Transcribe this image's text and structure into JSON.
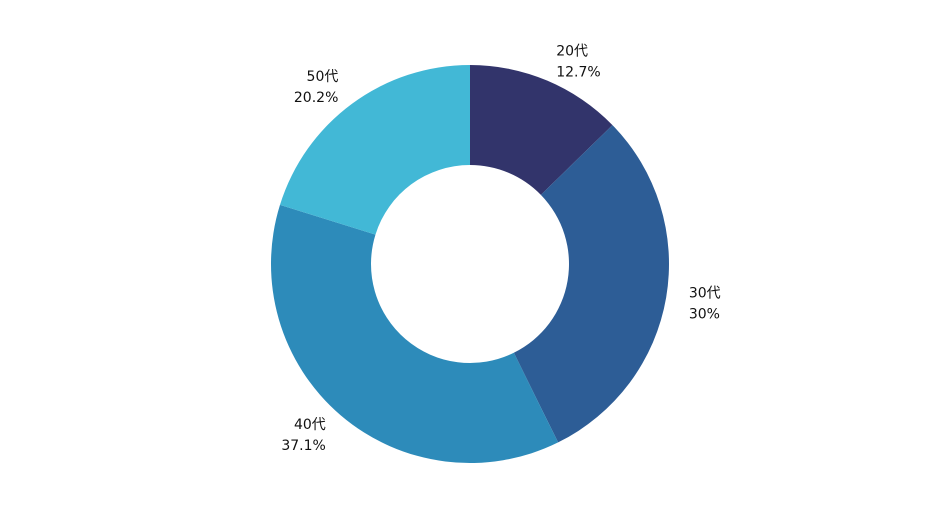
{
  "chart_data": {
    "type": "pie",
    "variant": "donut",
    "title": "",
    "legend": "none",
    "categories": [
      "20代",
      "30代",
      "40代",
      "50代"
    ],
    "values": [
      12.7,
      30,
      37.1,
      20.2
    ],
    "value_labels": [
      "12.7%",
      "30%",
      "37.1%",
      "20.2%"
    ],
    "colors": [
      "#32346B",
      "#2D5D96",
      "#2D8BBA",
      "#42B8D6"
    ]
  }
}
